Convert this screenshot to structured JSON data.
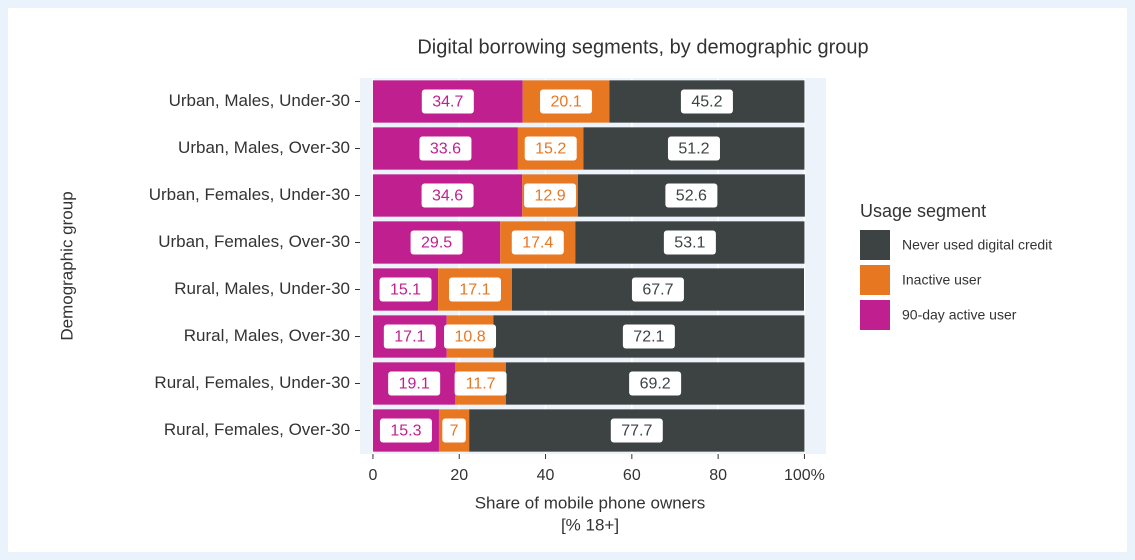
{
  "chart_data": {
    "type": "stacked-bar-horizontal",
    "title": "Digital borrowing segments, by demographic group",
    "xlabel": "Share of mobile phone owners",
    "xlabel_sub": "[% 18+]",
    "ylabel": "Demographic group",
    "legend_title": "Usage segment",
    "categories": [
      "Urban, Males, Under-30",
      "Urban, Males, Over-30",
      "Urban, Females, Under-30",
      "Urban, Females, Over-30",
      "Rural, Males, Under-30",
      "Rural, Males, Over-30",
      "Rural, Females, Under-30",
      "Rural, Females, Over-30"
    ],
    "series": [
      {
        "name": "90-day active user",
        "color": "#c0208f",
        "values": [
          34.7,
          33.6,
          34.6,
          29.5,
          15.1,
          17.1,
          19.1,
          15.3
        ]
      },
      {
        "name": "Inactive user",
        "color": "#e87722",
        "values": [
          20.1,
          15.2,
          12.9,
          17.4,
          17.1,
          10.8,
          11.7,
          7
        ]
      },
      {
        "name": "Never used digital credit",
        "color": "#3d4343",
        "values": [
          45.2,
          51.2,
          52.6,
          53.1,
          67.7,
          72.1,
          69.2,
          77.7
        ]
      }
    ],
    "xlim": [
      -3,
      105
    ],
    "xticks": [
      0,
      20,
      40,
      60,
      80,
      {
        "value": 100,
        "label": "100%"
      }
    ],
    "grid": true,
    "legend_position": "right"
  }
}
